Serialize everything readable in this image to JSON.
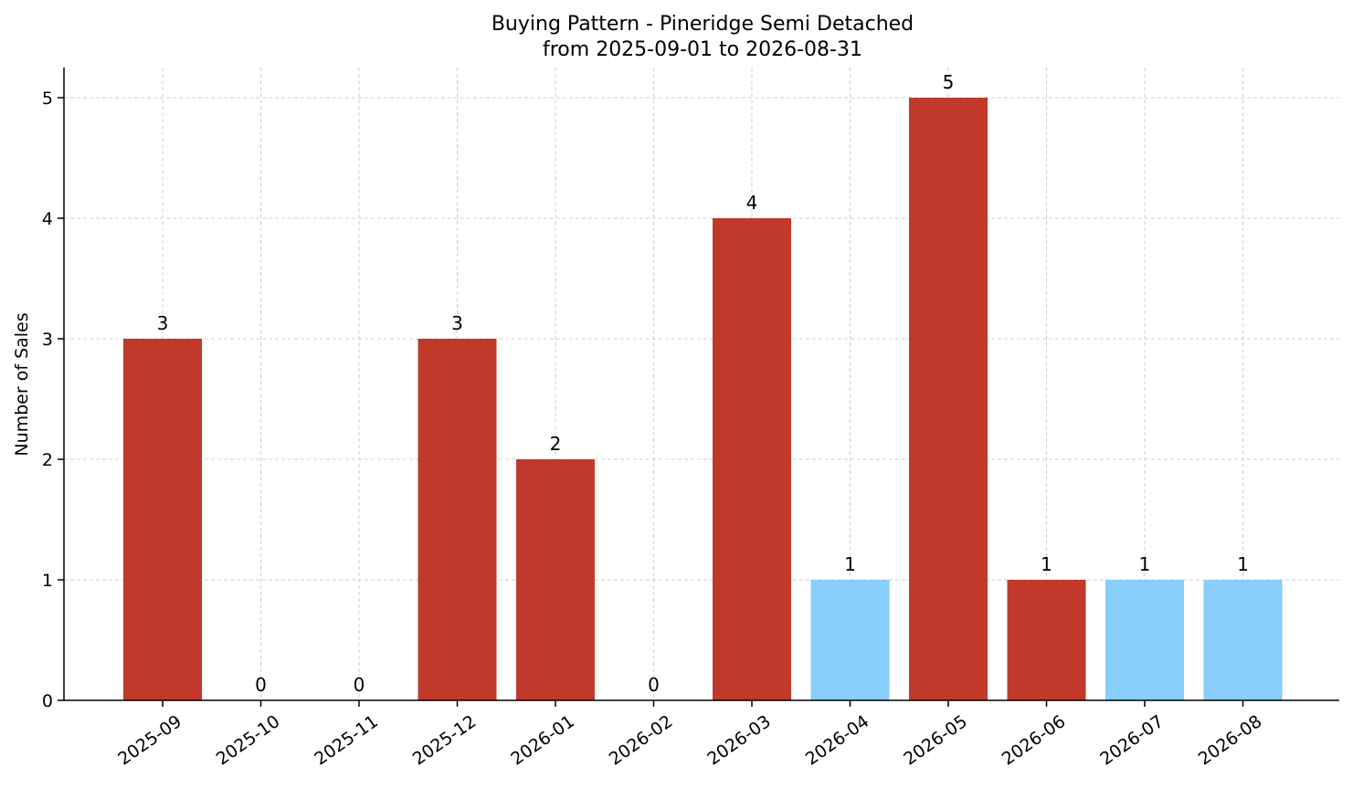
{
  "chart_data": {
    "type": "bar",
    "title_line1": "Buying Pattern - Pineridge Semi Detached",
    "title_line2": "from 2025-09-01 to 2026-08-31",
    "ylabel": "Number of Sales",
    "xlabel": "",
    "categories": [
      "2025-09",
      "2025-10",
      "2025-11",
      "2025-12",
      "2026-01",
      "2026-02",
      "2026-03",
      "2026-04",
      "2026-05",
      "2026-06",
      "2026-07",
      "2026-08"
    ],
    "values": [
      3,
      0,
      0,
      3,
      2,
      0,
      4,
      1,
      5,
      1,
      1,
      1
    ],
    "bar_colors": [
      "#c0392b",
      "#c0392b",
      "#c0392b",
      "#c0392b",
      "#c0392b",
      "#c0392b",
      "#c0392b",
      "#87cefa",
      "#c0392b",
      "#c0392b",
      "#87cefa",
      "#87cefa"
    ],
    "ylim": [
      0,
      5.25
    ],
    "yticks": [
      0,
      1,
      2,
      3,
      4,
      5
    ],
    "grid": true
  }
}
